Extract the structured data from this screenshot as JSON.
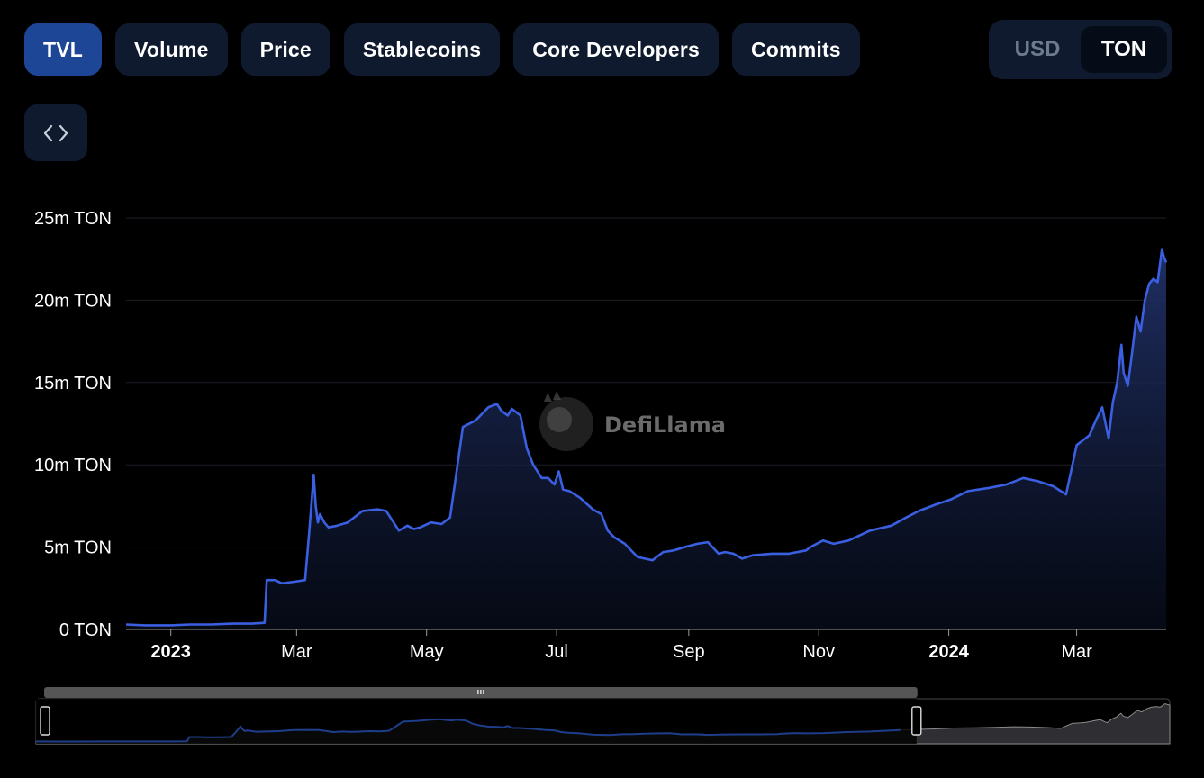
{
  "tabs": [
    "TVL",
    "Volume",
    "Price",
    "Stablecoins",
    "Core Developers",
    "Commits"
  ],
  "active_tab": "TVL",
  "denomination": {
    "options": [
      "USD",
      "TON"
    ],
    "selected": "TON"
  },
  "embed_icon": "code-brackets-icon",
  "watermark": "DefiLlama",
  "colors": {
    "line": "#3a5fe0",
    "active_tab": "#1e4696",
    "tab_bg": "#0f1a2e",
    "background": "#000000"
  },
  "chart_data": {
    "type": "area",
    "title": "",
    "xlabel": "",
    "ylabel": "",
    "grid": true,
    "legend": "none",
    "ylim": [
      0,
      25
    ],
    "y_unit": "m TON",
    "y_ticks": [
      "0 TON",
      "5m TON",
      "10m TON",
      "15m TON",
      "20m TON",
      "25m TON"
    ],
    "x_ticks": [
      {
        "label": "2023",
        "bold": true
      },
      {
        "label": "Mar",
        "bold": false
      },
      {
        "label": "May",
        "bold": false
      },
      {
        "label": "Jul",
        "bold": false
      },
      {
        "label": "Sep",
        "bold": false
      },
      {
        "label": "Nov",
        "bold": false
      },
      {
        "label": "2024",
        "bold": true
      },
      {
        "label": "Mar",
        "bold": false
      }
    ],
    "series": [
      {
        "x": [
          "2022-12-11",
          "2022-12-20",
          "2023-01-01",
          "2023-01-10",
          "2023-01-20",
          "2023-01-30",
          "2023-02-08",
          "2023-02-14",
          "2023-02-15",
          "2023-02-17",
          "2023-02-19",
          "2023-02-22",
          "2023-02-28",
          "2023-03-05",
          "2023-03-07",
          "2023-03-09",
          "2023-03-10",
          "2023-03-11",
          "2023-03-12",
          "2023-03-14",
          "2023-03-16",
          "2023-03-20",
          "2023-03-25",
          "2023-04-01",
          "2023-04-08",
          "2023-04-12",
          "2023-04-18",
          "2023-04-22",
          "2023-04-25",
          "2023-04-28",
          "2023-05-03",
          "2023-05-08",
          "2023-05-12",
          "2023-05-18",
          "2023-05-24",
          "2023-05-30",
          "2023-06-03",
          "2023-06-05",
          "2023-06-08",
          "2023-06-10",
          "2023-06-14",
          "2023-06-17",
          "2023-06-20",
          "2023-06-24",
          "2023-06-27",
          "2023-06-30",
          "2023-07-02",
          "2023-07-04",
          "2023-07-07",
          "2023-07-12",
          "2023-07-18",
          "2023-07-22",
          "2023-07-25",
          "2023-07-28",
          "2023-08-02",
          "2023-08-08",
          "2023-08-15",
          "2023-08-20",
          "2023-08-25",
          "2023-08-30",
          "2023-09-05",
          "2023-09-10",
          "2023-09-15",
          "2023-09-18",
          "2023-09-22",
          "2023-09-26",
          "2023-10-01",
          "2023-10-10",
          "2023-10-18",
          "2023-10-26",
          "2023-10-28",
          "2023-11-03",
          "2023-11-08",
          "2023-11-15",
          "2023-11-25",
          "2023-12-05",
          "2023-12-12",
          "2023-12-18",
          "2023-12-26",
          "2024-01-02",
          "2024-01-10",
          "2024-01-20",
          "2024-01-28",
          "2024-02-05",
          "2024-02-12",
          "2024-02-19",
          "2024-02-25",
          "2024-03-01",
          "2024-03-05",
          "2024-03-07",
          "2024-03-10",
          "2024-03-13",
          "2024-03-16",
          "2024-03-18",
          "2024-03-20",
          "2024-03-22",
          "2024-03-23",
          "2024-03-25",
          "2024-03-27",
          "2024-03-29",
          "2024-03-31",
          "2024-04-02",
          "2024-04-04",
          "2024-04-06",
          "2024-04-08",
          "2024-04-10",
          "2024-04-11",
          "2024-04-12"
        ],
        "values": [
          0.3,
          0.25,
          0.25,
          0.3,
          0.3,
          0.35,
          0.35,
          0.4,
          3.0,
          3.0,
          3.0,
          2.8,
          2.9,
          3.0,
          6.0,
          9.4,
          7.5,
          6.5,
          7.0,
          6.5,
          6.2,
          6.3,
          6.5,
          7.2,
          7.3,
          7.2,
          6.0,
          6.3,
          6.1,
          6.2,
          6.5,
          6.4,
          6.8,
          12.3,
          12.7,
          13.5,
          13.7,
          13.3,
          13.0,
          13.4,
          13.0,
          11.0,
          10.0,
          9.2,
          9.2,
          8.8,
          9.6,
          8.5,
          8.4,
          8.0,
          7.3,
          7.0,
          6.0,
          5.6,
          5.2,
          4.4,
          4.2,
          4.7,
          4.8,
          5.0,
          5.2,
          5.3,
          4.6,
          4.7,
          4.6,
          4.3,
          4.5,
          4.6,
          4.6,
          4.8,
          5.0,
          5.4,
          5.2,
          5.4,
          6.0,
          6.3,
          6.8,
          7.2,
          7.6,
          7.9,
          8.4,
          8.6,
          8.8,
          9.2,
          9.0,
          8.7,
          8.2,
          11.2,
          11.6,
          11.8,
          12.7,
          13.5,
          11.6,
          13.8,
          15.0,
          17.3,
          15.6,
          14.8,
          16.8,
          19.0,
          18.1,
          20.0,
          21.0,
          21.3,
          21.1,
          23.1,
          22.6,
          22.3
        ]
      }
    ],
    "x_domain": [
      "2022-12-11",
      "2024-04-12"
    ],
    "brush": {
      "start": "2022-12-11",
      "end": "2023-12-25"
    }
  }
}
